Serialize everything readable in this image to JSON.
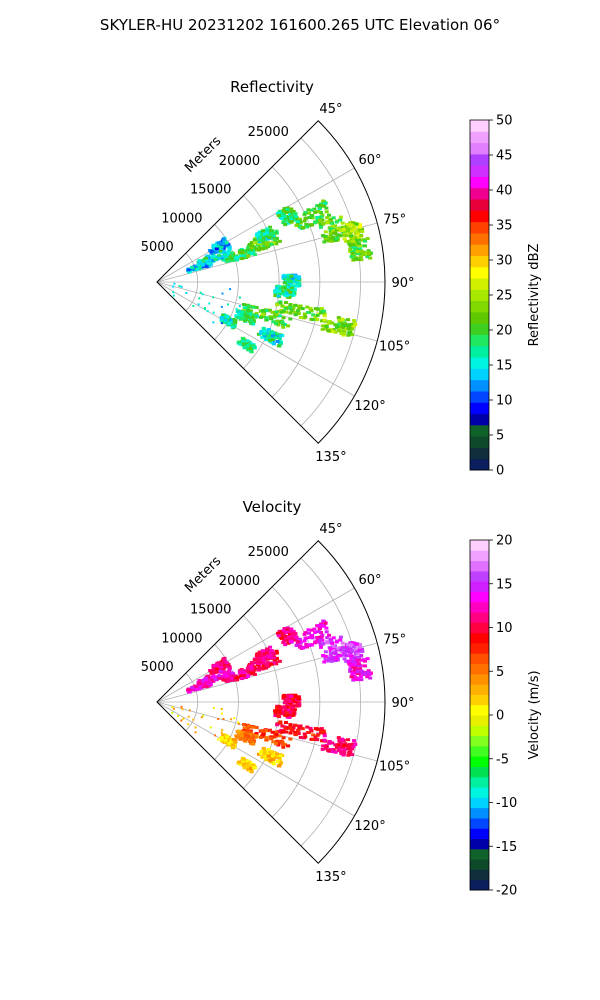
{
  "figure": {
    "suptitle": "SKYLER-HU  20231202  161600.265 UTC Elevation 06°"
  },
  "chart_data": [
    {
      "type": "heatmap",
      "title": "Reflectivity",
      "projection": "polar-sector",
      "radial_label": "Meters",
      "radial_ticks": [
        5000,
        10000,
        15000,
        20000,
        25000
      ],
      "range_max_m": 28000,
      "azimuth_ticks": [
        "45°",
        "60°",
        "75°",
        "90°",
        "105°",
        "120°",
        "135°"
      ],
      "azimuth_range_deg": [
        45,
        135
      ],
      "colorbar": {
        "label": "Reflectivity dBZ",
        "vmin": 0,
        "vmax": 50,
        "ticks": [
          0,
          5,
          10,
          15,
          20,
          25,
          30,
          35,
          40,
          45,
          50
        ],
        "colors": [
          "#0b1f5e",
          "#0f2f3f",
          "#0d4a2a",
          "#10612a",
          "#0000a8",
          "#0000ff",
          "#0047ff",
          "#0090ff",
          "#00d2ff",
          "#00f5e0",
          "#00f0a0",
          "#20e860",
          "#3ed020",
          "#5ec800",
          "#80d800",
          "#a8e800",
          "#d0f000",
          "#ffff00",
          "#ffd000",
          "#ffa000",
          "#ff7000",
          "#ff4000",
          "#ff0000",
          "#e8003a",
          "#f00090",
          "#ff00ff",
          "#d030ff",
          "#b040ff",
          "#e080ff",
          "#f0a0ff",
          "#ffd0ff"
        ]
      },
      "echo_regions": [
        {
          "az": [
            60,
            66
          ],
          "r": [
            17000,
            19000
          ],
          "value": 19
        },
        {
          "az": [
            64,
            70
          ],
          "r": [
            18000,
            23000
          ],
          "value": 20
        },
        {
          "az": [
            70,
            77
          ],
          "r": [
            21000,
            24000
          ],
          "value": 22
        },
        {
          "az": [
            73,
            79
          ],
          "r": [
            23500,
            26000
          ],
          "value": 24
        },
        {
          "az": [
            78,
            84
          ],
          "r": [
            24000,
            26500
          ],
          "value": 21
        },
        {
          "az": [
            66,
            73
          ],
          "r": [
            12000,
            16000
          ],
          "value": 21
        },
        {
          "az": [
            69,
            75
          ],
          "r": [
            8500,
            12500
          ],
          "value": 19
        },
        {
          "az": [
            67,
            73
          ],
          "r": [
            4000,
            7000
          ],
          "value": 14
        },
        {
          "az": [
            63,
            70
          ],
          "r": [
            5500,
            10000
          ],
          "value": 16
        },
        {
          "az": [
            57,
            63
          ],
          "r": [
            7500,
            10000
          ],
          "value": 13
        },
        {
          "az": [
            64,
            69
          ],
          "r": [
            13500,
            15500
          ],
          "value": 17
        },
        {
          "az": [
            87,
            92
          ],
          "r": [
            15500,
            17500
          ],
          "value": 16
        },
        {
          "az": [
            92,
            97
          ],
          "r": [
            14500,
            17000
          ],
          "value": 18
        },
        {
          "az": [
            99,
            104
          ],
          "r": [
            15000,
            21000
          ],
          "value": 22
        },
        {
          "az": [
            104,
            110
          ],
          "r": [
            11000,
            17000
          ],
          "value": 21
        },
        {
          "az": [
            101,
            106
          ],
          "r": [
            21000,
            25000
          ],
          "value": 23
        },
        {
          "az": [
            109,
            114
          ],
          "r": [
            10500,
            13000
          ],
          "value": 18
        },
        {
          "az": [
            116,
            121
          ],
          "r": [
            9000,
            11000
          ],
          "value": 17
        },
        {
          "az": [
            113,
            118
          ],
          "r": [
            14000,
            17000
          ],
          "value": 16
        },
        {
          "az": [
            123,
            127
          ],
          "r": [
            12500,
            14500
          ],
          "value": 18
        }
      ]
    },
    {
      "type": "heatmap",
      "title": "Velocity",
      "projection": "polar-sector",
      "radial_label": "Meters",
      "radial_ticks": [
        5000,
        10000,
        15000,
        20000,
        25000
      ],
      "range_max_m": 28000,
      "azimuth_ticks": [
        "45°",
        "60°",
        "75°",
        "90°",
        "105°",
        "120°",
        "135°"
      ],
      "azimuth_range_deg": [
        45,
        135
      ],
      "colorbar": {
        "label": "Velocity (m/s)",
        "vmin": -20,
        "vmax": 20,
        "ticks": [
          -20,
          -15,
          -10,
          -5,
          0,
          5,
          10,
          15,
          20
        ],
        "colors": [
          "#0b1f5e",
          "#0f2f3f",
          "#0d4a2a",
          "#10612a",
          "#0000a8",
          "#0000ff",
          "#0047ff",
          "#0090ff",
          "#00d2ff",
          "#00f5e0",
          "#00f0a0",
          "#00e050",
          "#00ff00",
          "#40ff20",
          "#80ff20",
          "#c0ff00",
          "#e8f000",
          "#ffff00",
          "#ffd000",
          "#ffb000",
          "#ff9000",
          "#ff7000",
          "#ff5000",
          "#ff2000",
          "#ff0000",
          "#ff0040",
          "#ff0080",
          "#ff00c0",
          "#ff00ff",
          "#d020ff",
          "#c040ff",
          "#e070ff",
          "#f0a0ff",
          "#ffd0ff"
        ]
      },
      "echo_regions": [
        {
          "az": [
            60,
            66
          ],
          "r": [
            17000,
            19000
          ],
          "value": 11
        },
        {
          "az": [
            64,
            70
          ],
          "r": [
            18000,
            23000
          ],
          "value": 13
        },
        {
          "az": [
            70,
            77
          ],
          "r": [
            21000,
            24000
          ],
          "value": 15
        },
        {
          "az": [
            73,
            79
          ],
          "r": [
            23500,
            26000
          ],
          "value": 15
        },
        {
          "az": [
            78,
            84
          ],
          "r": [
            24000,
            26500
          ],
          "value": 13
        },
        {
          "az": [
            66,
            73
          ],
          "r": [
            12000,
            16000
          ],
          "value": 10
        },
        {
          "az": [
            69,
            75
          ],
          "r": [
            8500,
            12500
          ],
          "value": 11
        },
        {
          "az": [
            67,
            73
          ],
          "r": [
            4000,
            7000
          ],
          "value": 13
        },
        {
          "az": [
            63,
            70
          ],
          "r": [
            5500,
            10000
          ],
          "value": 13
        },
        {
          "az": [
            57,
            63
          ],
          "r": [
            7500,
            10000
          ],
          "value": 11
        },
        {
          "az": [
            64,
            69
          ],
          "r": [
            13500,
            15500
          ],
          "value": 11
        },
        {
          "az": [
            87,
            92
          ],
          "r": [
            15500,
            17500
          ],
          "value": 10
        },
        {
          "az": [
            92,
            97
          ],
          "r": [
            14500,
            17000
          ],
          "value": 10
        },
        {
          "az": [
            99,
            104
          ],
          "r": [
            15000,
            21000
          ],
          "value": 9
        },
        {
          "az": [
            104,
            110
          ],
          "r": [
            11000,
            17000
          ],
          "value": 7
        },
        {
          "az": [
            101,
            106
          ],
          "r": [
            21000,
            25000
          ],
          "value": 11
        },
        {
          "az": [
            109,
            114
          ],
          "r": [
            10500,
            13000
          ],
          "value": 5
        },
        {
          "az": [
            116,
            121
          ],
          "r": [
            9000,
            11000
          ],
          "value": 2
        },
        {
          "az": [
            113,
            118
          ],
          "r": [
            14000,
            17000
          ],
          "value": 2
        },
        {
          "az": [
            123,
            127
          ],
          "r": [
            12500,
            14500
          ],
          "value": 2
        }
      ]
    }
  ]
}
